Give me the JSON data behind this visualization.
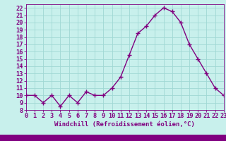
{
  "x": [
    0,
    1,
    2,
    3,
    4,
    5,
    6,
    7,
    8,
    9,
    10,
    11,
    12,
    13,
    14,
    15,
    16,
    17,
    18,
    19,
    20,
    21,
    22,
    23
  ],
  "y": [
    10,
    10,
    9,
    10,
    8.5,
    10,
    9,
    10.5,
    10,
    10,
    11,
    12.5,
    15.5,
    18.5,
    19.5,
    21,
    22,
    21.5,
    20,
    17,
    15,
    13,
    11,
    10
  ],
  "line_color": "#800080",
  "marker": "+",
  "marker_size": 4,
  "marker_color": "#800080",
  "bg_color": "#c8f0ec",
  "grid_color": "#a0d8d4",
  "xlabel": "Windchill (Refroidissement éolien,°C)",
  "xlabel_color": "#800080",
  "tick_color": "#800080",
  "bottom_bar_color": "#800080",
  "ylim": [
    8,
    22.5
  ],
  "xlim": [
    0,
    23
  ],
  "yticks": [
    8,
    9,
    10,
    11,
    12,
    13,
    14,
    15,
    16,
    17,
    18,
    19,
    20,
    21,
    22
  ],
  "xticks": [
    0,
    1,
    2,
    3,
    4,
    5,
    6,
    7,
    8,
    9,
    10,
    11,
    12,
    13,
    14,
    15,
    16,
    17,
    18,
    19,
    20,
    21,
    22,
    23
  ],
  "font_size": 6.2,
  "xlabel_fontsize": 6.5,
  "line_width": 1.0
}
